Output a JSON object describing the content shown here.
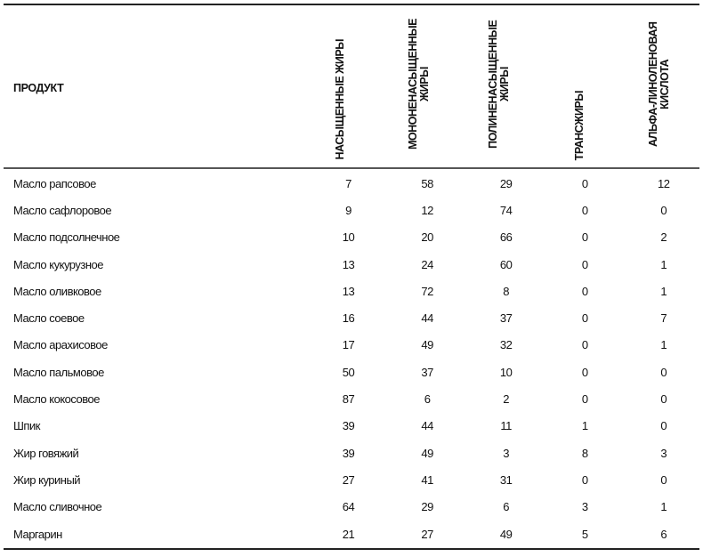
{
  "table": {
    "headers": [
      "ПРОДУКТ",
      "НАСЫЩЕННЫЕ ЖИРЫ",
      "МОНОНЕНАСЫЩЕННЫЕ ЖИРЫ",
      "ПОЛИНЕНАСЫЩЕННЫЕ ЖИРЫ",
      "ТРАНСЖИРЫ",
      "АЛЬФА-ЛИНОЛЕНОВАЯ КИСЛОТА"
    ],
    "rows": [
      [
        "Масло рапсовое",
        "7",
        "58",
        "29",
        "0",
        "12"
      ],
      [
        "Масло сафлоровое",
        "9",
        "12",
        "74",
        "0",
        "0"
      ],
      [
        "Масло подсолнечное",
        "10",
        "20",
        "66",
        "0",
        "2"
      ],
      [
        "Масло кукурузное",
        "13",
        "24",
        "60",
        "0",
        "1"
      ],
      [
        "Масло оливковое",
        "13",
        "72",
        "8",
        "0",
        "1"
      ],
      [
        "Масло соевое",
        "16",
        "44",
        "37",
        "0",
        "7"
      ],
      [
        "Масло арахисовое",
        "17",
        "49",
        "32",
        "0",
        "1"
      ],
      [
        "Масло пальмовое",
        "50",
        "37",
        "10",
        "0",
        "0"
      ],
      [
        "Масло кокосовое",
        "87",
        "6",
        "2",
        "0",
        "0"
      ],
      [
        "Шпик",
        "39",
        "44",
        "11",
        "1",
        "0"
      ],
      [
        "Жир говяжий",
        "39",
        "49",
        "3",
        "8",
        "3"
      ],
      [
        "Жир куриный",
        "27",
        "41",
        "31",
        "0",
        "0"
      ],
      [
        "Масло сливочное",
        "64",
        "29",
        "6",
        "3",
        "1"
      ],
      [
        "Маргарин",
        "21",
        "27",
        "49",
        "5",
        "6"
      ]
    ]
  }
}
